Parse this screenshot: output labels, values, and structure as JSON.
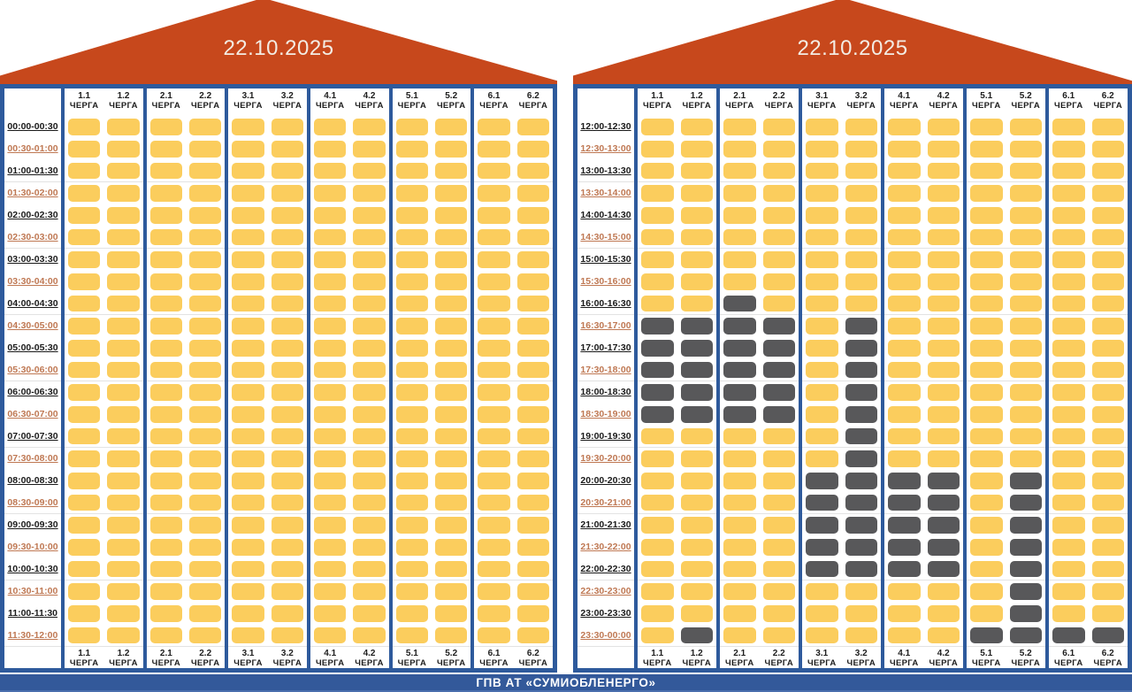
{
  "footer": {
    "title": "ГПВ АТ «СУМИОБЛЕНЕРГО»"
  },
  "colors": {
    "roof": "#c7481c",
    "frame_blue": "#2e5a9c",
    "cell_on": "#fbcd5d",
    "cell_off": "#58585a",
    "time_label_dark": "#1a1a1a",
    "time_label_alt": "#bf7853"
  },
  "column_suffix": "ЧЕРГА",
  "chart_data": [
    {
      "type": "heatmap",
      "title": "22.10.2025",
      "columns": [
        "1.1",
        "1.2",
        "2.1",
        "2.2",
        "3.1",
        "3.2",
        "4.1",
        "4.2",
        "5.1",
        "5.2",
        "6.1",
        "6.2"
      ],
      "rows": [
        {
          "time": "00:00-00:30",
          "off": []
        },
        {
          "time": "00:30-01:00",
          "off": []
        },
        {
          "time": "01:00-01:30",
          "off": []
        },
        {
          "time": "01:30-02:00",
          "off": []
        },
        {
          "time": "02:00-02:30",
          "off": []
        },
        {
          "time": "02:30-03:00",
          "off": []
        },
        {
          "time": "03:00-03:30",
          "off": []
        },
        {
          "time": "03:30-04:00",
          "off": []
        },
        {
          "time": "04:00-04:30",
          "off": []
        },
        {
          "time": "04:30-05:00",
          "off": []
        },
        {
          "time": "05:00-05:30",
          "off": []
        },
        {
          "time": "05:30-06:00",
          "off": []
        },
        {
          "time": "06:00-06:30",
          "off": []
        },
        {
          "time": "06:30-07:00",
          "off": []
        },
        {
          "time": "07:00-07:30",
          "off": []
        },
        {
          "time": "07:30-08:00",
          "off": []
        },
        {
          "time": "08:00-08:30",
          "off": []
        },
        {
          "time": "08:30-09:00",
          "off": []
        },
        {
          "time": "09:00-09:30",
          "off": []
        },
        {
          "time": "09:30-10:00",
          "off": []
        },
        {
          "time": "10:00-10:30",
          "off": []
        },
        {
          "time": "10:30-11:00",
          "off": []
        },
        {
          "time": "11:00-11:30",
          "off": []
        },
        {
          "time": "11:30-12:00",
          "off": []
        }
      ]
    },
    {
      "type": "heatmap",
      "title": "22.10.2025",
      "columns": [
        "1.1",
        "1.2",
        "2.1",
        "2.2",
        "3.1",
        "3.2",
        "4.1",
        "4.2",
        "5.1",
        "5.2",
        "6.1",
        "6.2"
      ],
      "rows": [
        {
          "time": "12:00-12:30",
          "off": []
        },
        {
          "time": "12:30-13:00",
          "off": []
        },
        {
          "time": "13:00-13:30",
          "off": []
        },
        {
          "time": "13:30-14:00",
          "off": []
        },
        {
          "time": "14:00-14:30",
          "off": []
        },
        {
          "time": "14:30-15:00",
          "off": []
        },
        {
          "time": "15:00-15:30",
          "off": []
        },
        {
          "time": "15:30-16:00",
          "off": []
        },
        {
          "time": "16:00-16:30",
          "off": [
            2
          ]
        },
        {
          "time": "16:30-17:00",
          "off": [
            0,
            1,
            2,
            3,
            5
          ]
        },
        {
          "time": "17:00-17:30",
          "off": [
            0,
            1,
            2,
            3,
            5
          ]
        },
        {
          "time": "17:30-18:00",
          "off": [
            0,
            1,
            2,
            3,
            5
          ]
        },
        {
          "time": "18:00-18:30",
          "off": [
            0,
            1,
            2,
            3,
            5
          ]
        },
        {
          "time": "18:30-19:00",
          "off": [
            0,
            1,
            2,
            3,
            5
          ]
        },
        {
          "time": "19:00-19:30",
          "off": [
            5
          ]
        },
        {
          "time": "19:30-20:00",
          "off": [
            5
          ]
        },
        {
          "time": "20:00-20:30",
          "off": [
            4,
            5,
            6,
            7,
            9
          ]
        },
        {
          "time": "20:30-21:00",
          "off": [
            4,
            5,
            6,
            7,
            9
          ]
        },
        {
          "time": "21:00-21:30",
          "off": [
            4,
            5,
            6,
            7,
            9
          ]
        },
        {
          "time": "21:30-22:00",
          "off": [
            4,
            5,
            6,
            7,
            9
          ]
        },
        {
          "time": "22:00-22:30",
          "off": [
            4,
            5,
            6,
            7,
            9
          ]
        },
        {
          "time": "22:30-23:00",
          "off": [
            9
          ]
        },
        {
          "time": "23:00-23:30",
          "off": [
            9
          ]
        },
        {
          "time": "23:30-00:00",
          "off": [
            1,
            8,
            9,
            10,
            11
          ]
        }
      ]
    }
  ]
}
